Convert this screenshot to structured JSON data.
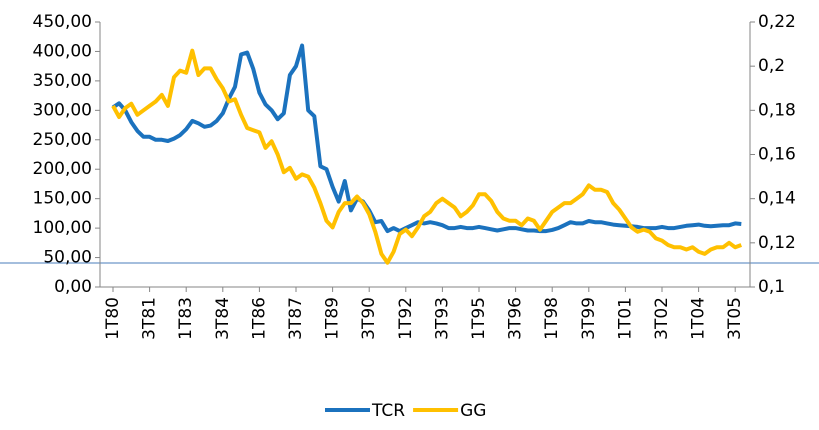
{
  "chart_data": {
    "type": "line",
    "categories": [
      "1T80",
      null,
      null,
      null,
      null,
      null,
      "3T81",
      null,
      null,
      null,
      null,
      null,
      "1T83",
      null,
      null,
      null,
      null,
      null,
      "3T84",
      null,
      null,
      null,
      null,
      null,
      "1T86",
      null,
      null,
      null,
      null,
      null,
      "3T87",
      null,
      null,
      null,
      null,
      null,
      "1T89",
      null,
      null,
      null,
      null,
      null,
      "3T90",
      null,
      null,
      null,
      null,
      null,
      "1T92",
      null,
      null,
      null,
      null,
      null,
      "3T93",
      null,
      null,
      null,
      null,
      null,
      "1T95",
      null,
      null,
      null,
      null,
      null,
      "3T96",
      null,
      null,
      null,
      null,
      null,
      "1T98",
      null,
      null,
      null,
      null,
      null,
      "3T99",
      null,
      null,
      null,
      null,
      null,
      "1T01",
      null,
      null,
      null,
      null,
      null,
      "3T02",
      null,
      null,
      null,
      null,
      null,
      "1T04",
      null,
      null,
      null,
      null,
      null,
      "3T05",
      null
    ],
    "series": [
      {
        "name": "TCR",
        "color": "#1b72be",
        "axis": "y",
        "values": [
          305,
          312,
          300,
          280,
          265,
          255,
          255,
          250,
          250,
          248,
          252,
          258,
          268,
          282,
          278,
          272,
          274,
          282,
          295,
          320,
          340,
          395,
          398,
          370,
          330,
          310,
          300,
          285,
          295,
          360,
          375,
          410,
          300,
          290,
          205,
          200,
          170,
          145,
          180,
          130,
          150,
          145,
          130,
          110,
          112,
          95,
          100,
          95,
          100,
          105,
          110,
          108,
          110,
          108,
          105,
          100,
          100,
          102,
          100,
          100,
          102,
          100,
          98,
          96,
          98,
          100,
          100,
          98,
          96,
          96,
          95,
          95,
          97,
          100,
          105,
          110,
          108,
          108,
          112,
          110,
          110,
          108,
          106,
          105,
          104,
          103,
          102,
          100,
          100,
          100,
          102,
          100,
          100,
          102,
          104,
          105,
          106,
          104,
          103,
          104,
          105,
          105,
          108,
          107
        ]
      },
      {
        "name": "GG",
        "color": "#ffc000",
        "axis": "y2",
        "values": [
          0.182,
          0.177,
          0.181,
          0.183,
          0.178,
          0.18,
          0.182,
          0.184,
          0.187,
          0.182,
          0.195,
          0.198,
          0.197,
          0.207,
          0.196,
          0.199,
          0.199,
          0.194,
          0.19,
          0.184,
          0.185,
          0.178,
          0.172,
          0.171,
          0.17,
          0.163,
          0.166,
          0.16,
          0.152,
          0.154,
          0.149,
          0.151,
          0.15,
          0.145,
          0.138,
          0.13,
          0.127,
          0.134,
          0.138,
          0.138,
          0.141,
          0.138,
          0.133,
          0.125,
          0.115,
          0.111,
          0.116,
          0.124,
          0.126,
          0.123,
          0.127,
          0.132,
          0.134,
          0.138,
          0.14,
          0.138,
          0.136,
          0.132,
          0.134,
          0.137,
          0.142,
          0.142,
          0.139,
          0.134,
          0.131,
          0.13,
          0.13,
          0.128,
          0.131,
          0.13,
          0.126,
          0.13,
          0.134,
          0.136,
          0.138,
          0.138,
          0.14,
          0.142,
          0.146,
          0.144,
          0.144,
          0.143,
          0.138,
          0.135,
          0.131,
          0.127,
          0.125,
          0.126,
          0.125,
          0.122,
          0.121,
          0.119,
          0.118,
          0.118,
          0.117,
          0.118,
          0.116,
          0.115,
          0.117,
          0.118,
          0.118,
          0.12,
          0.118,
          0.119
        ]
      }
    ],
    "ylim": [
      0,
      450
    ],
    "yticks": [
      {
        "value": 0,
        "label": "0,00"
      },
      {
        "value": 50,
        "label": "50,00"
      },
      {
        "value": 100,
        "label": "100,00"
      },
      {
        "value": 150,
        "label": "150,00"
      },
      {
        "value": 200,
        "label": "200,00"
      },
      {
        "value": 250,
        "label": "250,00"
      },
      {
        "value": 300,
        "label": "300,00"
      },
      {
        "value": 350,
        "label": "350,00"
      },
      {
        "value": 400,
        "label": "400,00"
      },
      {
        "value": 450,
        "label": "450,00"
      }
    ],
    "y2lim": [
      0.1,
      0.22
    ],
    "y2ticks": [
      {
        "value": 0.1,
        "label": "0,1"
      },
      {
        "value": 0.12,
        "label": "0,12"
      },
      {
        "value": 0.14,
        "label": "0,14"
      },
      {
        "value": 0.16,
        "label": "0,16"
      },
      {
        "value": 0.18,
        "label": "0,18"
      },
      {
        "value": 0.2,
        "label": "0,2"
      },
      {
        "value": 0.22,
        "label": "0,22"
      }
    ],
    "grid": false,
    "legend": "bottom"
  }
}
